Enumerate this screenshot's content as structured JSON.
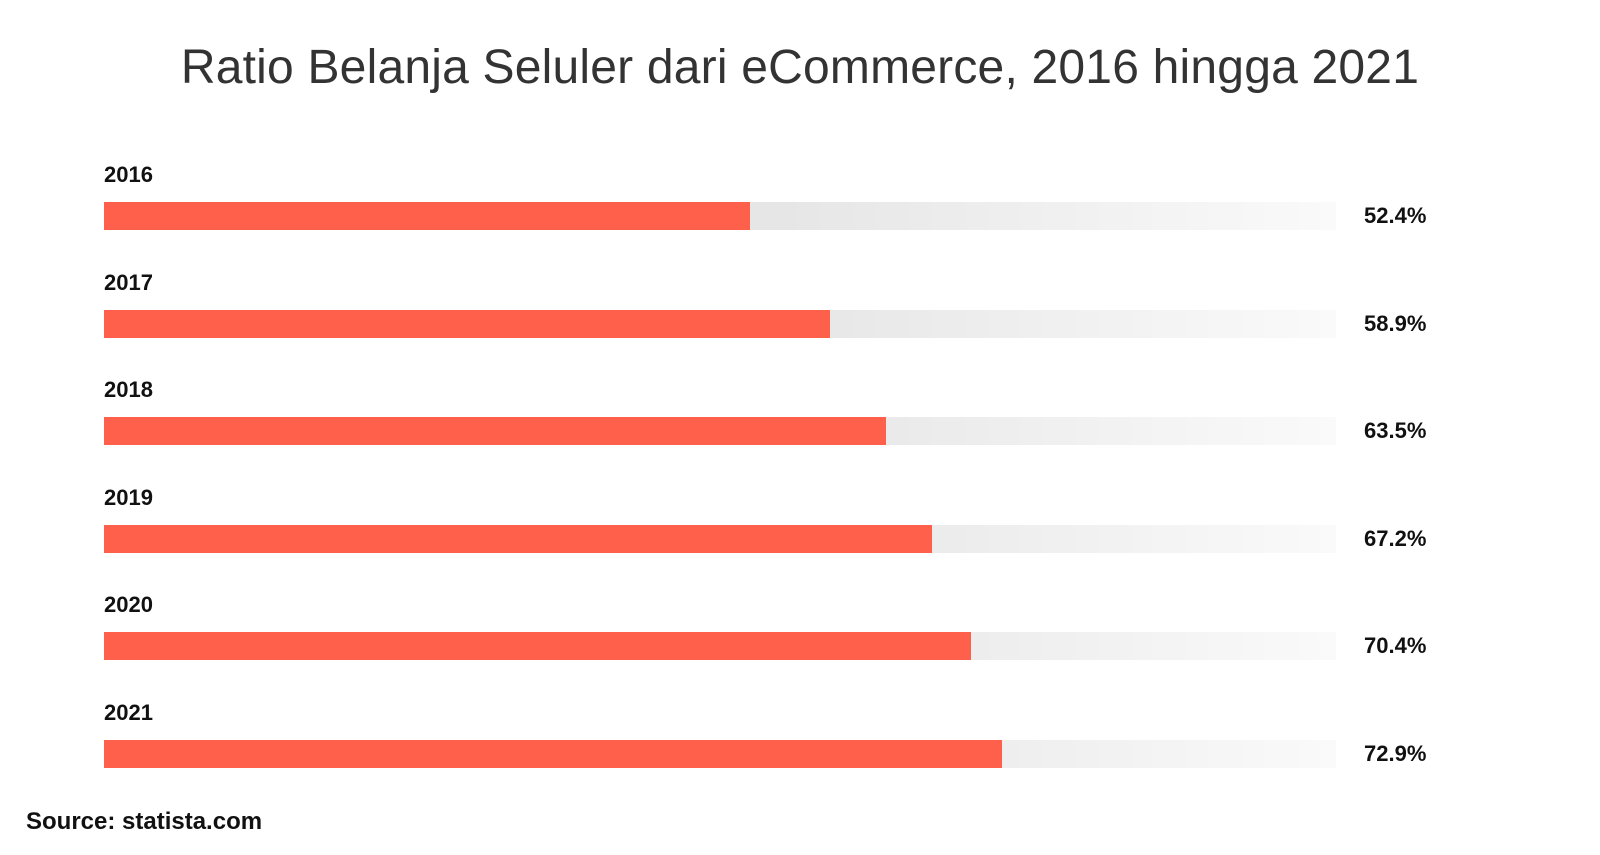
{
  "chart_data": {
    "type": "bar",
    "orientation": "horizontal",
    "title": "Ratio Belanja Seluler dari eCommerce, 2016 hingga 2021",
    "categories": [
      "2016",
      "2017",
      "2018",
      "2019",
      "2020",
      "2021"
    ],
    "values": [
      52.4,
      58.9,
      63.5,
      67.2,
      70.4,
      72.9
    ],
    "value_labels": [
      "52.4%",
      "58.9%",
      "63.5%",
      "67.2%",
      "70.4%",
      "72.9%"
    ],
    "xlim": [
      0,
      100
    ],
    "unit": "%",
    "grid": false,
    "legend": "none"
  },
  "source": "Source: statista.com",
  "colors": {
    "bar": "#ff604b",
    "track": "#e6e6e6",
    "title": "#333333",
    "text": "#111111"
  }
}
